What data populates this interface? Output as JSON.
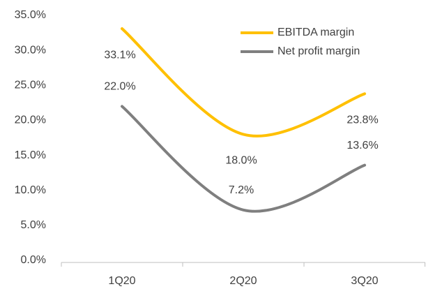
{
  "chart_data": {
    "type": "line",
    "categories": [
      "1Q20",
      "2Q20",
      "3Q20"
    ],
    "series": [
      {
        "name": "EBITDA margin",
        "color": "#FFC000",
        "values": [
          33.1,
          18.0,
          23.8
        ],
        "value_labels": [
          "33.1%",
          "18.0%",
          "23.8%"
        ]
      },
      {
        "name": "Net profit margin",
        "color": "#7F7F7F",
        "values": [
          22.0,
          7.2,
          13.6
        ],
        "value_labels": [
          "22.0%",
          "7.2%",
          "13.6%"
        ]
      }
    ],
    "ylim": [
      0,
      35
    ],
    "yticks": [
      {
        "value": 0,
        "label": "0.0%"
      },
      {
        "value": 5,
        "label": "5.0%"
      },
      {
        "value": 10,
        "label": "10.0%"
      },
      {
        "value": 15,
        "label": "15.0%"
      },
      {
        "value": 20,
        "label": "20.0%"
      },
      {
        "value": 25,
        "label": "25.0%"
      },
      {
        "value": 30,
        "label": "30.0%"
      },
      {
        "value": 35,
        "label": "35.0%"
      }
    ],
    "smooth": true,
    "legend": "top-right"
  }
}
